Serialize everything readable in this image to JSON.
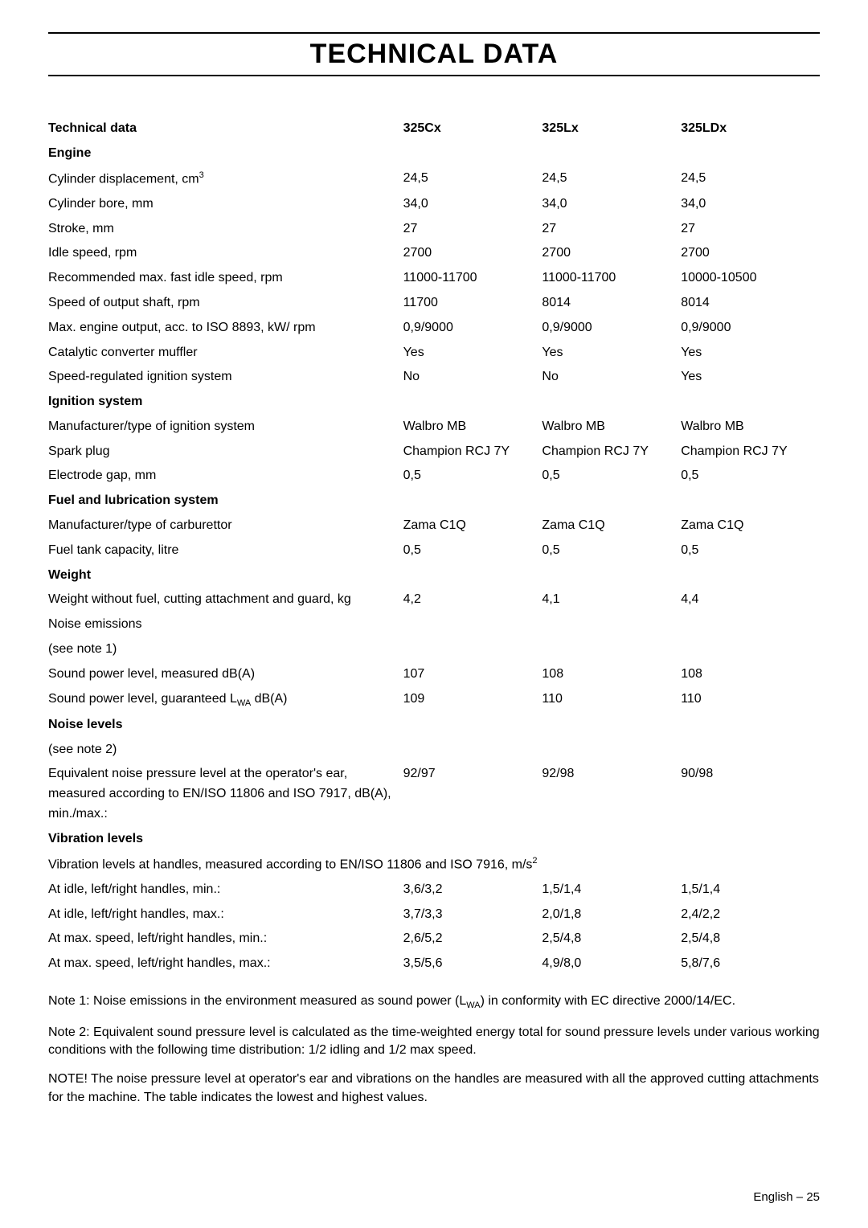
{
  "page": {
    "title": "TECHNICAL DATA",
    "footer_lang": "English",
    "footer_sep": "–",
    "footer_page": "25"
  },
  "headers": {
    "col0": "Technical data",
    "col1": "325Cx",
    "col2": "325Lx",
    "col3": "325LDx"
  },
  "sections": {
    "engine": "Engine",
    "ignition": "Ignition system",
    "fuel": "Fuel and lubrication system",
    "weight": "Weight",
    "noise_levels": "Noise levels",
    "vibration": "Vibration levels"
  },
  "rows": {
    "cyl_disp_label": "Cylinder displacement, cm",
    "cyl_disp_sup": "3",
    "cyl_disp": [
      "24,5",
      "24,5",
      "24,5"
    ],
    "cyl_bore_label": "Cylinder bore, mm",
    "cyl_bore": [
      "34,0",
      "34,0",
      "34,0"
    ],
    "stroke_label": "Stroke, mm",
    "stroke": [
      "27",
      "27",
      "27"
    ],
    "idle_label": "Idle speed, rpm",
    "idle": [
      "2700",
      "2700",
      "2700"
    ],
    "rec_max_label": "Recommended max. fast idle speed, rpm",
    "rec_max": [
      "11000-11700",
      "11000-11700",
      "10000-10500"
    ],
    "shaft_label": "Speed of output shaft, rpm",
    "shaft": [
      "11700",
      "8014",
      "8014"
    ],
    "max_out_label": "Max. engine output, acc. to ISO 8893, kW/ rpm",
    "max_out": [
      "0,9/9000",
      "0,9/9000",
      "0,9/9000"
    ],
    "cat_label": "Catalytic converter muffler",
    "cat": [
      "Yes",
      "Yes",
      "Yes"
    ],
    "sris_label": "Speed-regulated ignition system",
    "sris": [
      "No",
      "No",
      "Yes"
    ],
    "ign_mfr_label": "Manufacturer/type of ignition system",
    "ign_mfr": [
      "Walbro MB",
      "Walbro MB",
      "Walbro MB"
    ],
    "plug_label": "Spark plug",
    "plug": [
      "Champion RCJ 7Y",
      "Champion RCJ 7Y",
      "Champion RCJ 7Y"
    ],
    "gap_label": "Electrode gap, mm",
    "gap": [
      "0,5",
      "0,5",
      "0,5"
    ],
    "carb_label": "Manufacturer/type of carburettor",
    "carb": [
      "Zama C1Q",
      "Zama C1Q",
      "Zama C1Q"
    ],
    "tank_label": "Fuel tank capacity, litre",
    "tank": [
      "0,5",
      "0,5",
      "0,5"
    ],
    "weight_label": "Weight without fuel, cutting attachment and guard, kg",
    "weight": [
      "4,2",
      "4,1",
      "4,4"
    ],
    "noise_em_label": "Noise emissions",
    "see_note1": "(see note 1)",
    "spl_meas_label": "Sound power level, measured dB(A)",
    "spl_meas": [
      "107",
      "108",
      "108"
    ],
    "spl_guar_pre": "Sound power level, guaranteed L",
    "spl_guar_sub": "WA",
    "spl_guar_post": " dB(A)",
    "spl_guar": [
      "109",
      "110",
      "110"
    ],
    "see_note2": "(see note 2)",
    "eq_noise_label": "Equivalent noise pressure level at the operator's ear, measured according to EN/ISO 11806 and ISO 7917, dB(A), min./max.:",
    "eq_noise": [
      "92/97",
      "92/98",
      "90/98"
    ],
    "vib_intro_pre": "Vibration levels at handles, measured according to EN/ISO 11806 and ISO 7916, m/s",
    "vib_intro_sup": "2",
    "idle_min_label": "At idle, left/right handles, min.:",
    "idle_min": [
      "3,6/3,2",
      "1,5/1,4",
      "1,5/1,4"
    ],
    "idle_max_label": "At idle, left/right handles, max.:",
    "idle_max": [
      "3,7/3,3",
      "2,0/1,8",
      "2,4/2,2"
    ],
    "max_min_label": "At max. speed, left/right handles, min.:",
    "max_min": [
      "2,6/5,2",
      "2,5/4,8",
      "2,5/4,8"
    ],
    "max_max_label": "At max. speed, left/right handles, max.:",
    "max_max": [
      "3,5/5,6",
      "4,9/8,0",
      "5,8/7,6"
    ]
  },
  "notes": {
    "n1_pre": "Note 1: Noise emissions in the environment measured as sound power (L",
    "n1_sub": "WA",
    "n1_post": ") in conformity with EC directive 2000/14/EC.",
    "n2": "Note 2: Equivalent sound pressure level is calculated as the time-weighted energy total for sound pressure levels under various working conditions with the following time distribution: 1/2 idling and 1/2 max speed.",
    "n3": "NOTE!   The noise pressure level at operator's ear and vibrations on the handles are measured with all the approved cutting attachments for the machine. The table indicates the lowest  and highest values."
  }
}
